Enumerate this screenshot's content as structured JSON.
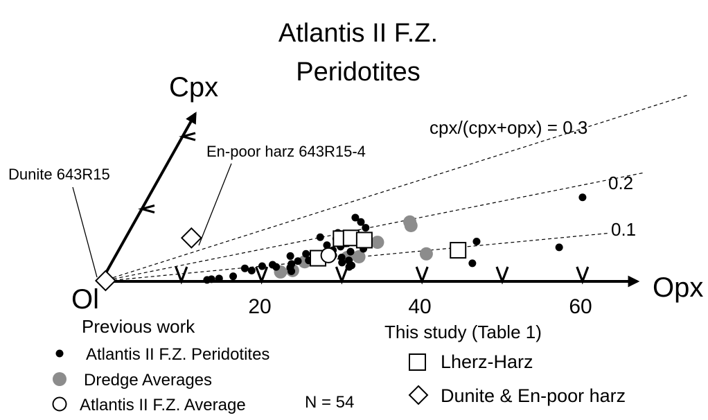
{
  "chart_data": {
    "type": "scatter",
    "title": [
      "Atlantis II F.Z.",
      "Peridotites"
    ],
    "axes": {
      "origin_label": "Ol",
      "x_label": "Opx",
      "y_label": "Cpx",
      "x_ticks": [
        10,
        20,
        30,
        40,
        50,
        60
      ],
      "x_tick_labels": [
        "20",
        "40",
        "60"
      ],
      "cpx_ticks": [
        10,
        20
      ]
    },
    "ratio_lines": [
      {
        "ratio": 0.3,
        "label": "cpx/(cpx+opx) = 0.3"
      },
      {
        "ratio": 0.2,
        "label": "0.2"
      },
      {
        "ratio": 0.1,
        "label": "0.1"
      }
    ],
    "annotations": {
      "dunite": "Dunite 643R15",
      "en_poor": "En-poor harz 643R15-4"
    },
    "series": [
      {
        "name": "Atlantis II F.Z. Peridotites",
        "marker": "filled-circle",
        "color": "#000000",
        "points": [
          [
            13.1,
            0.2
          ],
          [
            13.6,
            0.3
          ],
          [
            14.5,
            0.4
          ],
          [
            16.1,
            0.7
          ],
          [
            17.0,
            1.8
          ],
          [
            18.0,
            1.5
          ],
          [
            19.0,
            2.1
          ],
          [
            20.2,
            2.3
          ],
          [
            20.8,
            2.0
          ],
          [
            21.8,
            3.5
          ],
          [
            22.5,
            2.4
          ],
          [
            23.0,
            1.4
          ],
          [
            23.1,
            2.8
          ],
          [
            23.6,
            3.8
          ],
          [
            24.4,
            2.9
          ],
          [
            25.1,
            3.2
          ],
          [
            25.6,
            5.0
          ],
          [
            26.1,
            6.7
          ],
          [
            26.3,
            5.9
          ],
          [
            26.7,
            4.3
          ],
          [
            27.1,
            3.6
          ],
          [
            27.4,
            4.8
          ],
          [
            27.9,
            5.5
          ],
          [
            28.3,
            3.3
          ],
          [
            28.7,
            2.6
          ],
          [
            29.0,
            4.1
          ],
          [
            29.4,
            2.9
          ],
          [
            29.9,
            2.0
          ],
          [
            30.4,
            4.5
          ],
          [
            28.2,
            8.2
          ],
          [
            27.2,
            8.8
          ],
          [
            29.2,
            7.4
          ],
          [
            30.1,
            2.2
          ],
          [
            24.2,
            6.1
          ],
          [
            22.6,
            1.9
          ],
          [
            44.0,
            5.5
          ],
          [
            45.0,
            2.5
          ],
          [
            54.1,
            11.6
          ],
          [
            54.7,
            4.7
          ]
        ]
      },
      {
        "name": "Dredge Averages",
        "marker": "gray-circle",
        "color": "#8c8c8c",
        "points": [
          [
            21.7,
            1.3
          ],
          [
            23.1,
            1.5
          ],
          [
            24.0,
            2.7
          ],
          [
            27.6,
            5.6
          ],
          [
            29.0,
            3.3
          ],
          [
            30.4,
            3.4
          ],
          [
            31.7,
            5.4
          ],
          [
            34.3,
            8.2
          ],
          [
            34.7,
            7.7
          ],
          [
            38.6,
            3.8
          ]
        ]
      },
      {
        "name": "Atlantis II F.Z. Average",
        "marker": "open-circle",
        "color": "#000000",
        "points": [
          [
            26.5,
            3.6
          ]
        ]
      },
      {
        "name": "Lherz-Harz",
        "marker": "open-square",
        "color": "#000000",
        "points": [
          [
            26.9,
            5.9
          ],
          [
            28.1,
            6.0
          ],
          [
            29.9,
            5.7
          ],
          [
            25.4,
            3.2
          ],
          [
            42.3,
            4.3
          ]
        ]
      },
      {
        "name": "Dunite & En-poor harz",
        "marker": "open-diamond",
        "color": "#000000",
        "points": [
          [
            0.5,
            0.1
          ],
          [
            8.2,
            6.0
          ]
        ]
      }
    ]
  },
  "legend": {
    "previous_heading": "Previous work",
    "previous_items": [
      {
        "label": "Atlantis II F.Z. Peridotites",
        "marker": "filled-circle"
      },
      {
        "label": "Dredge Averages",
        "marker": "gray-circle"
      },
      {
        "label": "Atlantis II F.Z. Average",
        "marker": "open-circle"
      }
    ],
    "n_label": "N = 54",
    "study_heading": "This study (Table 1)",
    "study_items": [
      {
        "label": "Lherz-Harz",
        "marker": "open-square"
      },
      {
        "label": "Dunite & En-poor harz",
        "marker": "open-diamond"
      }
    ]
  }
}
